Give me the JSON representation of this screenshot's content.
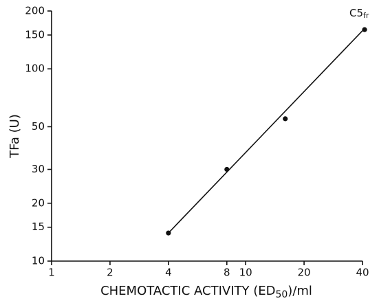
{
  "chart_data": {
    "type": "scatter",
    "xlabel": [
      "CHEMOTACTIC ACTIVITY (ED",
      "50",
      ")/ml"
    ],
    "ylabel": "TFa (U)",
    "x": [
      4,
      8,
      16,
      41
    ],
    "values": [
      14,
      30,
      55,
      160
    ],
    "color": "#111111",
    "fit_line": {
      "x": [
        4,
        40
      ],
      "values": [
        14,
        158
      ]
    },
    "annotation": {
      "base": "C5",
      "subscript": "fr"
    },
    "xscale": "log",
    "yscale": "log",
    "xlim": [
      1,
      40
    ],
    "ylim": [
      10,
      200
    ],
    "xticks": [
      1,
      2,
      4,
      8,
      10,
      20,
      40
    ],
    "yticks": [
      10,
      15,
      20,
      30,
      50,
      100,
      150,
      200
    ],
    "grid": false
  }
}
